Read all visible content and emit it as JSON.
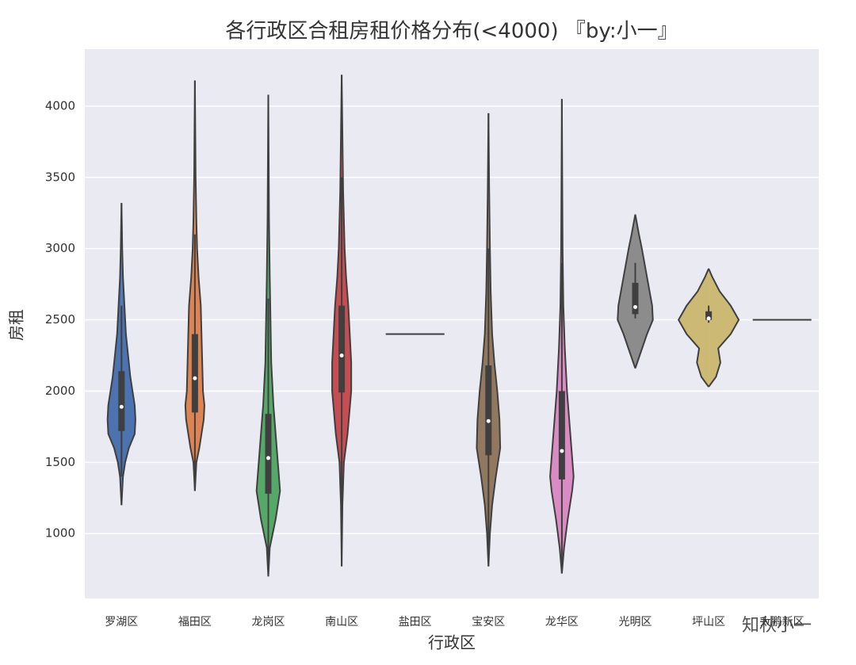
{
  "chart_data": {
    "type": "violin",
    "title": "各行政区合租房租价格分布(<4000)        『by:小一』",
    "x_label": "行政区",
    "y_label": "房租",
    "watermark": "知秋小一",
    "ylim": [
      545,
      4400
    ],
    "yticks": [
      1000,
      1500,
      2000,
      2500,
      3000,
      3500,
      4000
    ],
    "grid": true,
    "categories": [
      "罗湖区",
      "福田区",
      "龙岗区",
      "南山区",
      "盐田区",
      "宝安区",
      "龙华区",
      "光明区",
      "坪山区",
      "大鹏新区"
    ],
    "series": [
      {
        "name": "罗湖区",
        "color": "#4c72b0",
        "q1": 1720,
        "median": 1890,
        "q3": 2140,
        "whisker_low": 1400,
        "whisker_high": 2600,
        "profile": {
          "y": [
            1200,
            1400,
            1500,
            1600,
            1700,
            1800,
            1900,
            2000,
            2100,
            2200,
            2400,
            2600,
            2800,
            3000,
            3320
          ],
          "width": [
            0,
            0.02,
            0.05,
            0.1,
            0.18,
            0.19,
            0.18,
            0.15,
            0.12,
            0.1,
            0.06,
            0.04,
            0.02,
            0.01,
            0
          ]
        }
      },
      {
        "name": "福田区",
        "color": "#dd8452",
        "q1": 1850,
        "median": 2090,
        "q3": 2400,
        "whisker_low": 1300,
        "whisker_high": 3100,
        "profile": {
          "y": [
            1300,
            1500,
            1600,
            1800,
            1900,
            2000,
            2200,
            2400,
            2600,
            2800,
            3000,
            3200,
            3500,
            4180
          ],
          "width": [
            0,
            0.02,
            0.06,
            0.12,
            0.13,
            0.11,
            0.1,
            0.09,
            0.08,
            0.05,
            0.03,
            0.02,
            0.01,
            0
          ]
        }
      },
      {
        "name": "龙岗区",
        "color": "#55a868",
        "q1": 1280,
        "median": 1530,
        "q3": 1840,
        "whisker_low": 700,
        "whisker_high": 2650,
        "profile": {
          "y": [
            700,
            900,
            1000,
            1100,
            1300,
            1500,
            1700,
            1900,
            2200,
            2500,
            2800,
            3200,
            4080
          ],
          "width": [
            0,
            0.02,
            0.06,
            0.1,
            0.16,
            0.13,
            0.1,
            0.07,
            0.04,
            0.03,
            0.02,
            0.01,
            0
          ]
        }
      },
      {
        "name": "南山区",
        "color": "#c44e52",
        "q1": 1990,
        "median": 2250,
        "q3": 2600,
        "whisker_low": 1100,
        "whisker_high": 3500,
        "profile": {
          "y": [
            770,
            1200,
            1500,
            1700,
            2000,
            2200,
            2400,
            2600,
            2800,
            3000,
            3400,
            3800,
            4220
          ],
          "width": [
            0,
            0.01,
            0.03,
            0.08,
            0.13,
            0.13,
            0.11,
            0.09,
            0.06,
            0.04,
            0.02,
            0.01,
            0
          ]
        }
      },
      {
        "name": "盐田区",
        "color": "#8172b3",
        "value": 2400
      },
      {
        "name": "宝安区",
        "color": "#937860",
        "q1": 1550,
        "median": 1790,
        "q3": 2180,
        "whisker_low": 800,
        "whisker_high": 3000,
        "profile": {
          "y": [
            770,
            1000,
            1200,
            1400,
            1600,
            1800,
            2000,
            2200,
            2400,
            2700,
            3000,
            3400,
            3950
          ],
          "width": [
            0,
            0.02,
            0.05,
            0.1,
            0.16,
            0.15,
            0.12,
            0.08,
            0.05,
            0.03,
            0.02,
            0.01,
            0
          ]
        }
      },
      {
        "name": "龙华区",
        "color": "#da8bc3",
        "q1": 1380,
        "median": 1580,
        "q3": 2000,
        "whisker_low": 720,
        "whisker_high": 2900,
        "profile": {
          "y": [
            720,
            900,
            1100,
            1300,
            1400,
            1600,
            1800,
            2000,
            2300,
            2600,
            3000,
            3500,
            4050
          ],
          "width": [
            0,
            0.03,
            0.08,
            0.14,
            0.16,
            0.13,
            0.1,
            0.07,
            0.04,
            0.02,
            0.01,
            0.005,
            0
          ]
        }
      },
      {
        "name": "光明区",
        "color": "#8c8c8c",
        "q1": 2540,
        "median": 2590,
        "q3": 2760,
        "whisker_low": 2510,
        "whisker_high": 2900,
        "profile": {
          "y": [
            2160,
            2250,
            2400,
            2500,
            2600,
            2800,
            3000,
            3100,
            3240
          ],
          "width": [
            0,
            0.06,
            0.16,
            0.24,
            0.23,
            0.16,
            0.09,
            0.05,
            0
          ]
        }
      },
      {
        "name": "坪山区",
        "color": "#ccb974",
        "q1": 2500,
        "median": 2510,
        "q3": 2560,
        "whisker_low": 2480,
        "whisker_high": 2600,
        "profile": {
          "y": [
            2030,
            2100,
            2200,
            2300,
            2400,
            2500,
            2600,
            2700,
            2800,
            2860
          ],
          "width": [
            0,
            0.1,
            0.16,
            0.13,
            0.3,
            0.41,
            0.3,
            0.15,
            0.05,
            0
          ]
        }
      },
      {
        "name": "大鹏新区",
        "color": "#64b5cd",
        "value": 2500
      }
    ]
  }
}
